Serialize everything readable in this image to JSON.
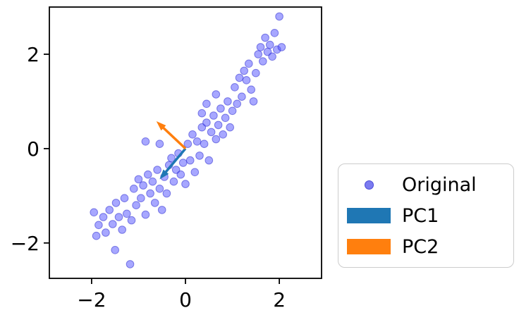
{
  "figure": {
    "background": "#ffffff"
  },
  "legend": {
    "position": "outside-right",
    "items": [
      {
        "label": "Original",
        "marker": "dot",
        "color": "#7b7bf0"
      },
      {
        "label": "PC1",
        "marker": "patch",
        "color": "#1f77b4"
      },
      {
        "label": "PC2",
        "marker": "patch",
        "color": "#ff7f0e"
      }
    ]
  },
  "chart_data": {
    "type": "scatter",
    "title": "",
    "xlabel": "",
    "ylabel": "",
    "xlim": [
      -2.9,
      2.9
    ],
    "ylim": [
      -2.75,
      3.0
    ],
    "grid": false,
    "legend_position": "outside-right",
    "x_ticks": {
      "values": [
        -2,
        0,
        2
      ],
      "labels": [
        "−2",
        "0",
        "2"
      ]
    },
    "y_ticks": {
      "values": [
        -2,
        0,
        2
      ],
      "labels": [
        "−2",
        "0",
        "2"
      ]
    },
    "series": [
      {
        "name": "Original",
        "type": "scatter",
        "color": "#5050ff",
        "alpha": 0.5,
        "points": [
          [
            -1.95,
            -1.35
          ],
          [
            -1.85,
            -1.62
          ],
          [
            -1.9,
            -1.85
          ],
          [
            -1.75,
            -1.45
          ],
          [
            -1.7,
            -1.78
          ],
          [
            -1.62,
            -1.3
          ],
          [
            -1.55,
            -1.6
          ],
          [
            -1.5,
            -2.15
          ],
          [
            -1.48,
            -1.15
          ],
          [
            -1.42,
            -1.45
          ],
          [
            -1.35,
            -1.72
          ],
          [
            -1.3,
            -1.05
          ],
          [
            -1.25,
            -1.38
          ],
          [
            -1.18,
            -2.45
          ],
          [
            -1.15,
            -1.52
          ],
          [
            -1.1,
            -0.85
          ],
          [
            -1.05,
            -1.2
          ],
          [
            -1.0,
            -0.65
          ],
          [
            -0.95,
            -1.05
          ],
          [
            -0.9,
            -0.78
          ],
          [
            -0.85,
            -1.4
          ],
          [
            -0.8,
            -0.55
          ],
          [
            -0.85,
            0.15
          ],
          [
            -0.75,
            -0.95
          ],
          [
            -0.7,
            -0.7
          ],
          [
            -0.65,
            -1.15
          ],
          [
            -0.6,
            -0.45
          ],
          [
            -0.55,
            0.1
          ],
          [
            -0.55,
            -0.85
          ],
          [
            -0.5,
            -1.3
          ],
          [
            -0.45,
            -0.6
          ],
          [
            -0.4,
            -0.95
          ],
          [
            -0.35,
            -0.35
          ],
          [
            -0.3,
            -0.2
          ],
          [
            -0.25,
            -0.7
          ],
          [
            -0.2,
            -0.45
          ],
          [
            -0.15,
            -0.1
          ],
          [
            -0.1,
            -0.55
          ],
          [
            -0.05,
            -0.3
          ],
          [
            0.0,
            -0.75
          ],
          [
            0.05,
            0.1
          ],
          [
            0.1,
            -0.25
          ],
          [
            0.15,
            0.3
          ],
          [
            0.2,
            -0.5
          ],
          [
            0.25,
            0.15
          ],
          [
            0.3,
            -0.15
          ],
          [
            0.35,
            0.45
          ],
          [
            0.35,
            0.75
          ],
          [
            0.4,
            0.1
          ],
          [
            0.45,
            0.95
          ],
          [
            0.45,
            0.55
          ],
          [
            0.5,
            -0.25
          ],
          [
            0.55,
            0.35
          ],
          [
            0.6,
            0.7
          ],
          [
            0.65,
            1.15
          ],
          [
            0.65,
            0.2
          ],
          [
            0.7,
            0.5
          ],
          [
            0.75,
            0.85
          ],
          [
            0.8,
            0.3
          ],
          [
            0.85,
            0.65
          ],
          [
            0.9,
            1.0
          ],
          [
            0.95,
            0.45
          ],
          [
            1.0,
            0.8
          ],
          [
            1.05,
            1.3
          ],
          [
            1.1,
            0.95
          ],
          [
            1.15,
            1.5
          ],
          [
            1.2,
            1.1
          ],
          [
            1.25,
            1.65
          ],
          [
            1.3,
            1.45
          ],
          [
            1.35,
            1.8
          ],
          [
            1.4,
            1.25
          ],
          [
            1.45,
            1.0
          ],
          [
            1.5,
            1.6
          ],
          [
            1.55,
            2.0
          ],
          [
            1.6,
            2.15
          ],
          [
            1.65,
            1.85
          ],
          [
            1.7,
            2.35
          ],
          [
            1.75,
            2.05
          ],
          [
            1.8,
            2.2
          ],
          [
            1.85,
            1.95
          ],
          [
            1.9,
            2.45
          ],
          [
            1.95,
            2.1
          ],
          [
            2.0,
            2.8
          ],
          [
            2.05,
            2.15
          ]
        ]
      },
      {
        "name": "PC1",
        "type": "arrow",
        "color": "#1f77b4",
        "from": [
          0,
          0
        ],
        "to": [
          -0.55,
          -0.65
        ]
      },
      {
        "name": "PC2",
        "type": "arrow",
        "color": "#ff7f0e",
        "from": [
          0,
          0
        ],
        "to": [
          -0.62,
          0.58
        ]
      }
    ]
  }
}
